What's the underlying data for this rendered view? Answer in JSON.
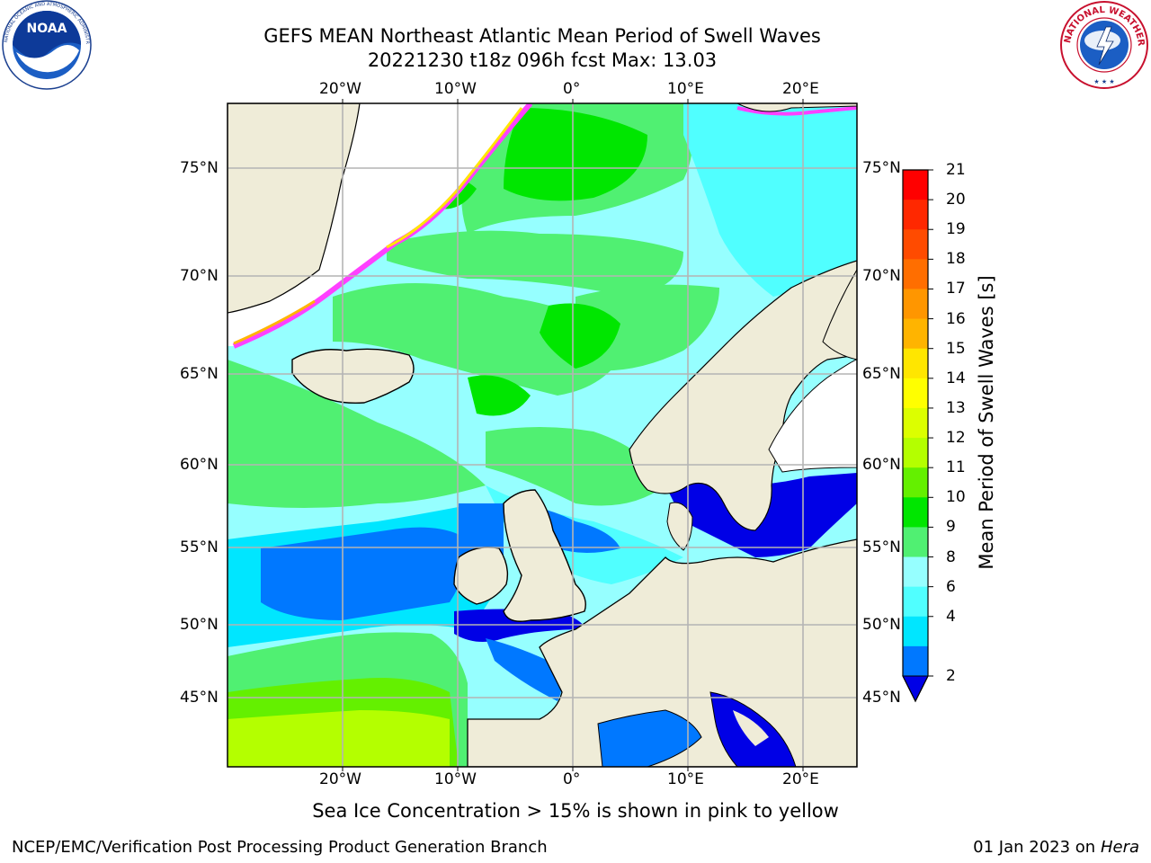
{
  "header": {
    "title_line1": "GEFS MEAN Northeast Atlantic Mean Period of Swell Waves",
    "title_line2": "20221230 t18z 096h fcst   Max: 13.03"
  },
  "logos": {
    "left": "NOAA logo",
    "right": "National Weather Service logo",
    "left_text": "NATIONAL OCEANIC AND ATMOSPHERIC ADMINISTRATION · U.S. DEPARTMENT OF COMMERCE",
    "right_text": "NATIONAL WEATHER SERVICE"
  },
  "map": {
    "top_lon_labels": [
      "20°W",
      "10°W",
      "0°",
      "10°E",
      "20°E"
    ],
    "bottom_lon_labels": [
      "20°W",
      "10°W",
      "0°",
      "10°E",
      "20°E"
    ],
    "left_lat_labels": [
      "75°N",
      "70°N",
      "65°N",
      "60°N",
      "55°N",
      "50°N",
      "45°N"
    ],
    "right_lat_labels": [
      "75°N",
      "70°N",
      "65°N",
      "60°N",
      "55°N",
      "50°N",
      "45°N"
    ],
    "colors": {
      "land": "#efecd8",
      "ice": "#ffffff",
      "grid": "#b4b4b4",
      "border": "#000000"
    }
  },
  "colorbar": {
    "title": "Mean Period of Swell Waves [s]",
    "ticks": [
      "21",
      "20",
      "19",
      "18",
      "17",
      "16",
      "15",
      "14",
      "13",
      "12",
      "11",
      "10",
      "9",
      "8",
      "6",
      "4",
      "2"
    ],
    "colors": [
      "#ff0000",
      "#ff2800",
      "#ff4b00",
      "#ff6e00",
      "#ff9600",
      "#ffb400",
      "#ffe600",
      "#ffff00",
      "#dcff00",
      "#b4ff00",
      "#64f000",
      "#00e600",
      "#50f072",
      "#96ffff",
      "#50ffff",
      "#00e6ff",
      "#0078ff"
    ],
    "extend_color": "#0000e6"
  },
  "caption": "Sea Ice Concentration > 15% is shown in pink to yellow",
  "footer": {
    "left": "NCEP/EMC/Verification Post Processing Product Generation Branch",
    "date": "01 Jan 2023 on",
    "machine": "Hera"
  }
}
